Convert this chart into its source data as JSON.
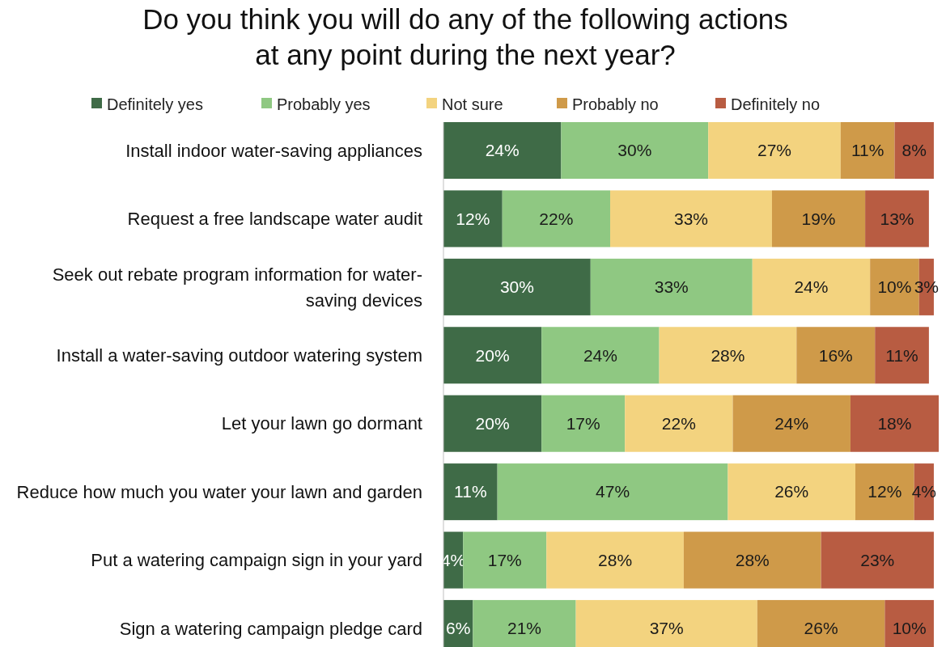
{
  "chart_data": {
    "type": "bar",
    "orientation": "horizontal",
    "stacked": true,
    "legend": "top",
    "title": "Do you think you will do any of the following actions at any point during the next year?",
    "categories": [
      "Install indoor water-saving appliances",
      "Request a free landscape water audit",
      "Seek out rebate program information for water-saving devices",
      "Install a water-saving outdoor watering system",
      "Let your lawn go dormant",
      "Reduce how much you water your lawn and garden",
      "Put a watering campaign sign in your yard",
      "Sign a watering campaign pledge card"
    ],
    "series": [
      {
        "name": "Definitely yes",
        "color": "#3f6b47",
        "values": [
          24,
          12,
          30,
          20,
          20,
          11,
          4,
          6
        ],
        "value_labels": [
          "24%",
          "12%",
          "30%",
          "20%",
          "20%",
          "11%",
          "4%",
          "6%"
        ]
      },
      {
        "name": "Probably yes",
        "color": "#8fc882",
        "values": [
          30,
          22,
          33,
          24,
          17,
          47,
          17,
          21
        ],
        "value_labels": [
          "30%",
          "22%",
          "33%",
          "24%",
          "17%",
          "47%",
          "17%",
          "21%"
        ]
      },
      {
        "name": "Not sure",
        "color": "#f3d37f",
        "values": [
          27,
          33,
          24,
          28,
          22,
          26,
          28,
          37
        ],
        "value_labels": [
          "27%",
          "33%",
          "24%",
          "28%",
          "22%",
          "26%",
          "28%",
          "37%"
        ]
      },
      {
        "name": "Probably no",
        "color": "#cf9a49",
        "values": [
          11,
          19,
          10,
          16,
          24,
          12,
          28,
          26
        ],
        "value_labels": [
          "11%",
          "19%",
          "10%",
          "16%",
          "24%",
          "12%",
          "28%",
          "26%"
        ]
      },
      {
        "name": "Definitely no",
        "color": "#b85c42",
        "values": [
          8,
          13,
          3,
          11,
          18,
          4,
          23,
          10
        ],
        "value_labels": [
          "8%",
          "13%",
          "3%",
          "11%",
          "18%",
          "4%",
          "23%",
          "10%"
        ]
      }
    ]
  }
}
